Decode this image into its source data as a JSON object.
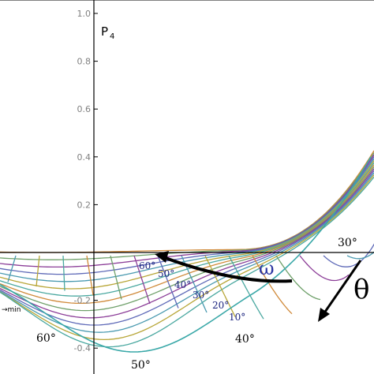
{
  "chart_data": {
    "type": "line",
    "y_axis_label": "P",
    "y_axis_label_sub": "4",
    "ylim": [
      -0.45,
      1.0
    ],
    "y_ticks": [
      "1.0",
      "0.8",
      "0.6",
      "0.4",
      "0.2",
      "-0.2",
      "-0.4"
    ],
    "grid": false,
    "annotations": {
      "omega": "ω",
      "theta": "θ",
      "min_text": "→min",
      "theta_labels": [
        "30°",
        "40°",
        "50°",
        "60°"
      ],
      "omega_labels": [
        "60°",
        "50°",
        "40°",
        "30°",
        "20°",
        "10°"
      ]
    },
    "colors": [
      "#d08a3a",
      "#6fa06a",
      "#8c3e98",
      "#5f6ab8",
      "#4a9ab0",
      "#b8a638",
      "#4aa8a0"
    ]
  }
}
